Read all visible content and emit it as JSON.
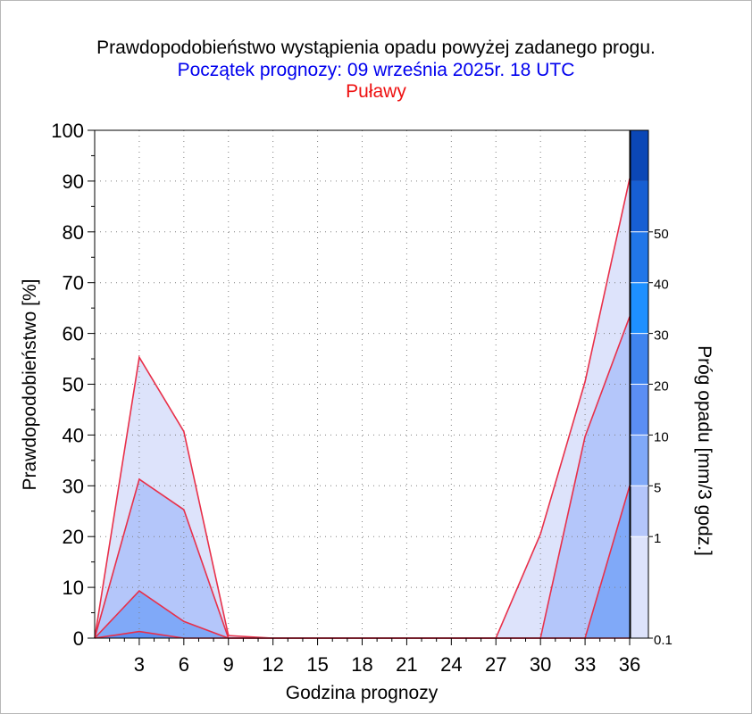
{
  "header": {
    "title": "Prawdopodobieństwo wystąpienia opadu powyżej zadanego progu.",
    "subtitle": "Początek prognozy: 09 września 2025r. 18 UTC",
    "location": "Puławy"
  },
  "chart_data": {
    "type": "area",
    "title": "Prawdopodobieństwo wystąpienia opadu powyżej zadanego progu.",
    "subtitle": "Początek prognozy: 09 września 2025r. 18 UTC",
    "location": "Puławy",
    "xlabel": "Godzina prognozy",
    "ylabel": "Prawdopodobieństwo [%]",
    "xlim": [
      0,
      36
    ],
    "ylim": [
      0,
      100
    ],
    "x": [
      0,
      3,
      6,
      9,
      12,
      15,
      18,
      21,
      24,
      27,
      30,
      33,
      36
    ],
    "xticks": [
      "3",
      "6",
      "9",
      "12",
      "15",
      "18",
      "21",
      "24",
      "27",
      "30",
      "33",
      "36"
    ],
    "yticks": [
      "0",
      "10",
      "20",
      "30",
      "40",
      "50",
      "60",
      "70",
      "80",
      "90",
      "100"
    ],
    "grid": true,
    "series": [
      {
        "threshold": "0.1",
        "color": "#dde3fb",
        "values": [
          0,
          55.3,
          40.7,
          0.5,
          0,
          0,
          0,
          0,
          0,
          0,
          20.5,
          50.5,
          90.5
        ]
      },
      {
        "threshold": "1",
        "color": "#b4c6fa",
        "values": [
          0,
          31.3,
          25.3,
          0,
          0,
          0,
          0,
          0,
          0,
          0,
          0,
          39.7,
          63.3
        ]
      },
      {
        "threshold": "5",
        "color": "#80a9f8",
        "values": [
          0,
          9.3,
          3.3,
          0,
          0,
          0,
          0,
          0,
          0,
          0,
          0,
          0,
          30.0
        ]
      },
      {
        "threshold": "10",
        "color": "#5b8ef3",
        "values": [
          0,
          1.3,
          0,
          0,
          0,
          0,
          0,
          0,
          0,
          0,
          0,
          0,
          0
        ]
      }
    ],
    "line_color": "#e8304a",
    "colorbar": {
      "label": "Próg opadu [mm/3 godz.]",
      "tick_labels": [
        "0.1",
        "1",
        "5",
        "10",
        "20",
        "30",
        "40",
        "50"
      ],
      "colors": [
        "#dde3fb",
        "#b4c6fa",
        "#80a9f8",
        "#5b8ef3",
        "#3f84ef",
        "#1e90ff",
        "#2176e8",
        "#175fd3",
        "#0b47b6"
      ]
    }
  }
}
